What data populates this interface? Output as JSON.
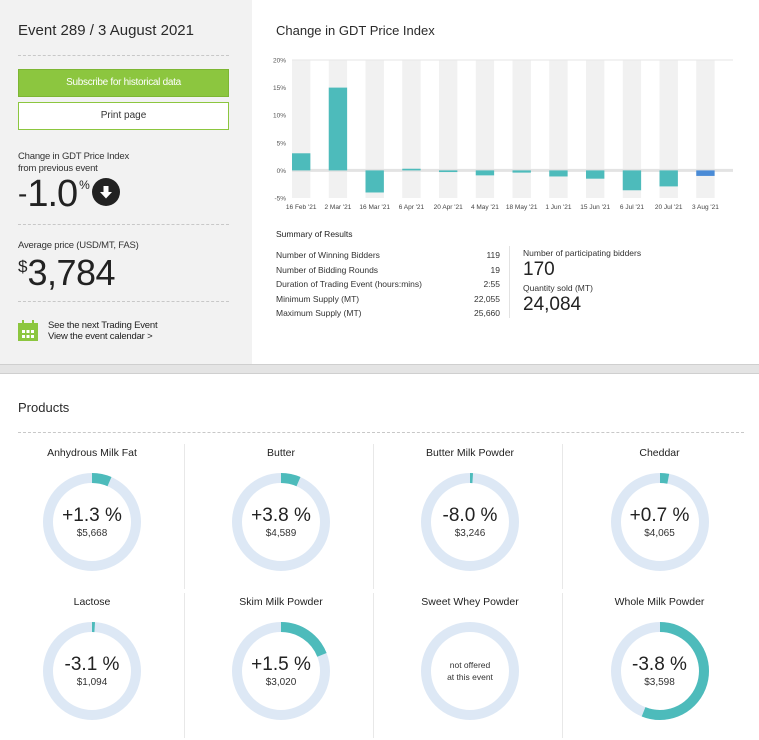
{
  "event": {
    "title": "Event 289 / 3 August 2021",
    "subscribe_label": "Subscribe for historical data",
    "print_label": "Print page",
    "change_label_1": "Change in GDT Price Index",
    "change_label_2": "from previous event",
    "change_sign": "-",
    "change_value": "1.0",
    "change_unit": "%",
    "change_direction": "down",
    "avg_label": "Average price (USD/MT, FAS)",
    "avg_currency": "$",
    "avg_value": "3,784",
    "next_event": "See the next Trading Event",
    "calendar_link": "View the event calendar >"
  },
  "chart_data": {
    "type": "bar",
    "title": "Change in GDT Price Index",
    "categories": [
      "16 Feb '21",
      "2 Mar '21",
      "16 Mar '21",
      "6 Apr '21",
      "20 Apr '21",
      "4 May '21",
      "18 May '21",
      "1 Jun '21",
      "15 Jun '21",
      "6 Jul '21",
      "20 Jul '21",
      "3 Aug '21"
    ],
    "values": [
      3.1,
      15.0,
      -4.0,
      0.3,
      -0.3,
      -0.9,
      -0.4,
      -1.1,
      -1.5,
      -3.6,
      -2.9,
      -1.0
    ],
    "yticks": [
      "20%",
      "15%",
      "10%",
      "5%",
      "0%",
      "-5%"
    ],
    "ylim": [
      -5,
      20
    ],
    "xlabel": "",
    "ylabel": "",
    "colors": {
      "bar": "#4dbbbb",
      "current": "#4a8bd6",
      "band": "#f1f1f1"
    }
  },
  "summary": {
    "title": "Summary of Results",
    "rows": [
      {
        "label": "Number of Winning Bidders",
        "value": "119"
      },
      {
        "label": "Number of Bidding Rounds",
        "value": "19"
      },
      {
        "label": "Duration of Trading Event (hours:mins)",
        "value": "2:55"
      },
      {
        "label": "Minimum Supply (MT)",
        "value": "22,055"
      },
      {
        "label": "Maximum Supply (MT)",
        "value": "25,660"
      }
    ],
    "participating_label": "Number of participating bidders",
    "participating_value": "170",
    "quantity_label": "Quantity sold (MT)",
    "quantity_value": "24,084"
  },
  "products": {
    "title": "Products",
    "items": [
      {
        "name": "Anhydrous Milk Fat",
        "change": "+1.3 %",
        "price": "$5,668",
        "fill": 0.065
      },
      {
        "name": "Butter",
        "change": "+3.8 %",
        "price": "$4,589",
        "fill": 0.065
      },
      {
        "name": "Butter Milk Powder",
        "change": "-8.0 %",
        "price": "$3,246",
        "fill": 0.01
      },
      {
        "name": "Cheddar",
        "change": "+0.7 %",
        "price": "$4,065",
        "fill": 0.03
      },
      {
        "name": "Lactose",
        "change": "-3.1 %",
        "price": "$1,094",
        "fill": 0.01
      },
      {
        "name": "Skim Milk Powder",
        "change": "+1.5 %",
        "price": "$3,020",
        "fill": 0.19
      },
      {
        "name": "Sweet Whey Powder",
        "na_1": "not offered",
        "na_2": "at this event",
        "fill": 0
      },
      {
        "name": "Whole Milk Powder",
        "change": "-3.8 %",
        "price": "$3,598",
        "fill": 0.56
      }
    ],
    "colors": {
      "ring": "#dde8f5",
      "fill": "#4dbbbb"
    }
  }
}
